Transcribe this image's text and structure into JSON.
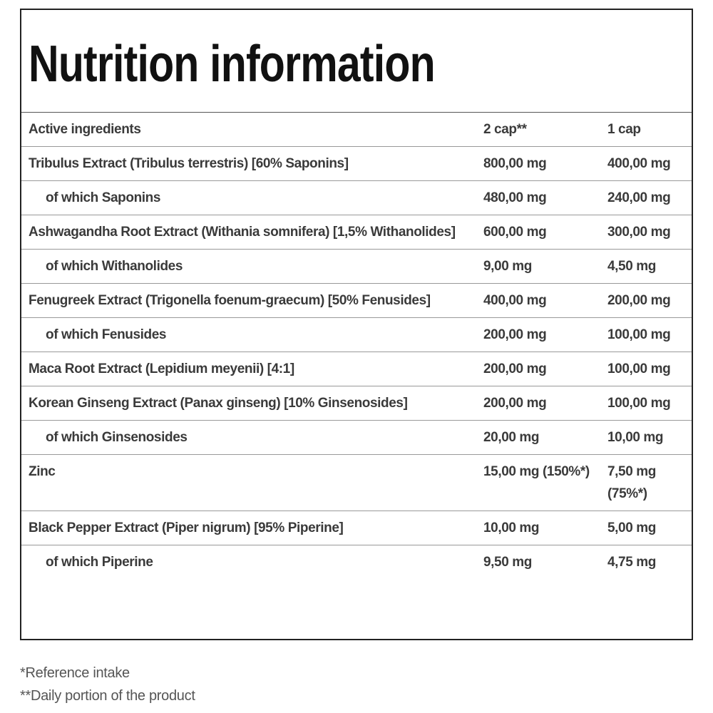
{
  "title": "Nutrition information",
  "table": {
    "header": [
      "Active ingredients",
      "2 cap**",
      "1 cap"
    ],
    "rows": [
      [
        "Tribulus Extract (Tribulus terrestris) [60% Saponins]",
        "800,00 mg",
        "400,00 mg"
      ],
      [
        "of which Saponins",
        "480,00 mg",
        "240,00 mg"
      ],
      [
        "Ashwagandha Root Extract (Withania somnifera) [1,5% Withanolides]",
        "600,00 mg",
        "300,00 mg"
      ],
      [
        "of which Withanolides",
        "9,00 mg",
        "4,50 mg"
      ],
      [
        "Fenugreek Extract (Trigonella foenum-graecum) [50% Fenusides]",
        "400,00 mg",
        "200,00 mg"
      ],
      [
        "of which Fenusides",
        "200,00 mg",
        "100,00 mg"
      ],
      [
        "Maca Root Extract (Lepidium meyenii) [4:1]",
        "200,00 mg",
        "100,00 mg"
      ],
      [
        "Korean Ginseng Extract (Panax ginseng) [10% Ginsenosides]",
        "200,00 mg",
        "100,00 mg"
      ],
      [
        "of which Ginsenosides",
        "20,00 mg",
        "10,00 mg"
      ],
      [
        "Zinc",
        "15,00 mg (150%*)",
        "7,50 mg (75%*)"
      ],
      [
        "Black Pepper Extract (Piper nigrum) [95% Piperine]",
        "10,00 mg",
        "5,00 mg"
      ],
      [
        "of which Piperine",
        "9,50 mg",
        "4,75 mg"
      ]
    ]
  },
  "footnotes": [
    "*Reference intake",
    "**Daily portion of the product"
  ]
}
